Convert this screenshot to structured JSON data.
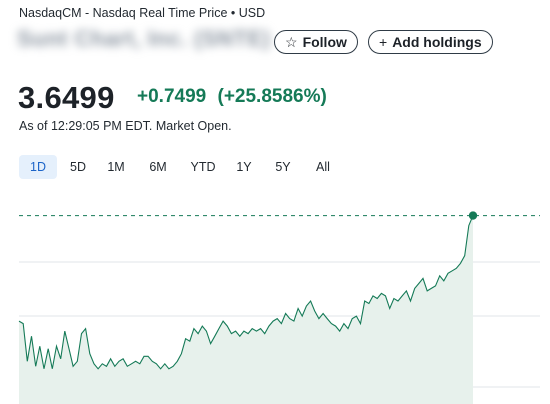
{
  "header": {
    "source": "NasdaqCM - Nasdaq Real Time Price • USD",
    "company_name": "Sunt Chart, Inc. (SNTE)",
    "follow_label": "Follow",
    "follow_icon": "star-outline-icon",
    "add_holdings_label": "Add holdings",
    "add_icon": "plus-icon"
  },
  "quote": {
    "price": "3.6499",
    "change": "+0.7499",
    "change_pct": "(+25.8586%)",
    "as_of": "As of 12:29:05 PM EDT. Market Open.",
    "change_color": "#157a57"
  },
  "range_tabs": [
    {
      "label": "1D",
      "active": true
    },
    {
      "label": "5D",
      "active": false
    },
    {
      "label": "1M",
      "active": false
    },
    {
      "label": "6M",
      "active": false
    },
    {
      "label": "YTD",
      "active": false
    },
    {
      "label": "1Y",
      "active": false
    },
    {
      "label": "5Y",
      "active": false
    },
    {
      "label": "All",
      "active": false
    }
  ],
  "chart_data": {
    "type": "area",
    "series": [
      {
        "values": [
          3.23,
          3.22,
          3.07,
          3.17,
          3.05,
          3.13,
          3.04,
          3.12,
          3.04,
          3.13,
          3.08,
          3.19,
          3.12,
          3.05,
          3.07,
          3.18,
          3.2,
          3.1,
          3.06,
          3.04,
          3.06,
          3.05,
          3.08,
          3.05,
          3.07,
          3.08,
          3.05,
          3.06,
          3.07,
          3.06,
          3.09,
          3.09,
          3.07,
          3.06,
          3.04,
          3.06,
          3.04,
          3.05,
          3.07,
          3.1,
          3.16,
          3.15,
          3.2,
          3.18,
          3.21,
          3.19,
          3.14,
          3.17,
          3.2,
          3.23,
          3.21,
          3.18,
          3.19,
          3.17,
          3.19,
          3.18,
          3.2,
          3.19,
          3.2,
          3.18,
          3.21,
          3.23,
          3.24,
          3.22,
          3.26,
          3.24,
          3.23,
          3.28,
          3.25,
          3.29,
          3.31,
          3.27,
          3.24,
          3.26,
          3.24,
          3.22,
          3.21,
          3.19,
          3.22,
          3.2,
          3.24,
          3.25,
          3.22,
          3.31,
          3.3,
          3.33,
          3.32,
          3.34,
          3.33,
          3.28,
          3.32,
          3.31,
          3.33,
          3.35,
          3.31,
          3.36,
          3.38,
          3.4,
          3.35,
          3.36,
          3.37,
          3.41,
          3.39,
          3.42,
          3.43,
          3.44,
          3.46,
          3.49,
          3.61,
          3.65
        ],
        "color": "#157a57",
        "fill": "#e7f1ec"
      }
    ],
    "previous_close": 2.9,
    "current_price": 3.6499,
    "ylim": [
      2.9,
      3.68
    ],
    "grid": true
  }
}
